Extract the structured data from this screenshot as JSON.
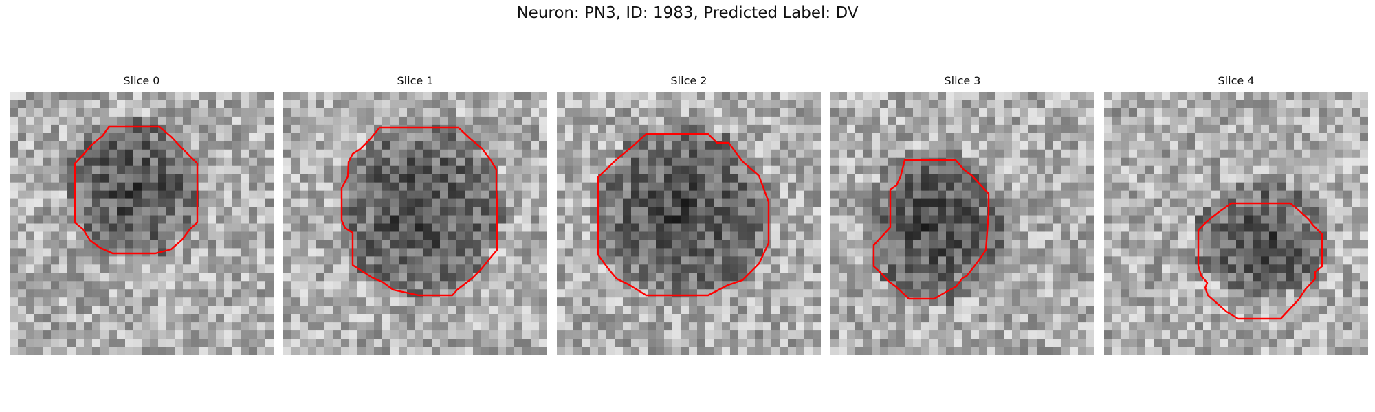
{
  "title": "Neuron: PN3, ID: 1983, Predicted Label: DV",
  "colors": {
    "contour": "#ff0000",
    "background": "#ffffff",
    "colormap": "gray"
  },
  "panels": [
    {
      "title": "Slice 0"
    },
    {
      "title": "Slice 1"
    },
    {
      "title": "Slice 2"
    },
    {
      "title": "Slice 3"
    },
    {
      "title": "Slice 4"
    }
  ]
}
